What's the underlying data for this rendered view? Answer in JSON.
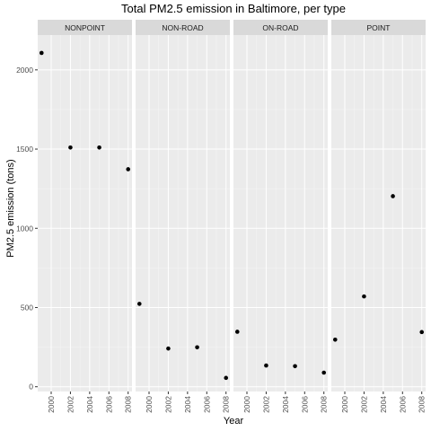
{
  "chart_data": {
    "type": "scatter",
    "title": "Total PM2.5 emission in Baltimore, per type",
    "xlabel": "Year",
    "ylabel": "PM2.5 emission (tons)",
    "ylim": [
      -30,
      2220
    ],
    "xlim": [
      1998.6,
      2008.4
    ],
    "y_ticks": [
      0,
      500,
      1000,
      1500,
      2000
    ],
    "y_tick_labels": [
      "0",
      "500",
      "1000",
      "1500",
      "2000"
    ],
    "x_ticks": [
      2000,
      2002,
      2004,
      2006,
      2008
    ],
    "x_tick_labels": [
      "2000",
      "2002",
      "2004",
      "2006",
      "2008"
    ],
    "grid": true,
    "facets": [
      {
        "name": "NONPOINT",
        "x": [
          1999,
          2002,
          2005,
          2008
        ],
        "y": [
          2107,
          1510,
          1510,
          1373
        ]
      },
      {
        "name": "NON-ROAD",
        "x": [
          1999,
          2002,
          2005,
          2008
        ],
        "y": [
          523,
          241,
          249,
          56
        ]
      },
      {
        "name": "ON-ROAD",
        "x": [
          1999,
          2002,
          2005,
          2008
        ],
        "y": [
          347,
          134,
          130,
          89
        ]
      },
      {
        "name": "POINT",
        "x": [
          1999,
          2002,
          2005,
          2008
        ],
        "y": [
          297,
          570,
          1203,
          345
        ]
      }
    ]
  },
  "colors": {
    "panel_background": "#ebebeb",
    "strip_background": "#d9d9d9",
    "grid": "#ffffff",
    "point": "#000000"
  }
}
